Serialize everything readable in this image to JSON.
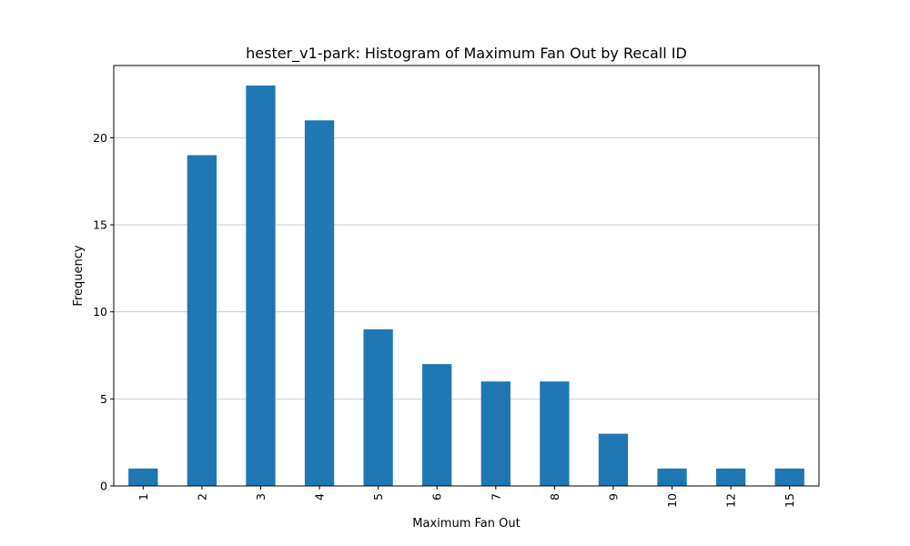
{
  "chart_data": {
    "type": "bar",
    "title": "hester_v1-park: Histogram of Maximum Fan Out by Recall ID",
    "xlabel": "Maximum Fan Out",
    "ylabel": "Frequency",
    "categories": [
      "1",
      "2",
      "3",
      "4",
      "5",
      "6",
      "7",
      "8",
      "9",
      "10",
      "12",
      "15"
    ],
    "values": [
      1,
      19,
      23,
      21,
      9,
      7,
      6,
      6,
      3,
      1,
      1,
      1
    ],
    "ylim": [
      0,
      24.15
    ],
    "yticks": [
      "0",
      "5",
      "10",
      "15",
      "20"
    ],
    "grid": {
      "y": true,
      "x": false
    },
    "legend": "none",
    "colors": {
      "bar": "#1f77b4",
      "grid": "#c0c0c0",
      "axis": "#000000"
    }
  }
}
